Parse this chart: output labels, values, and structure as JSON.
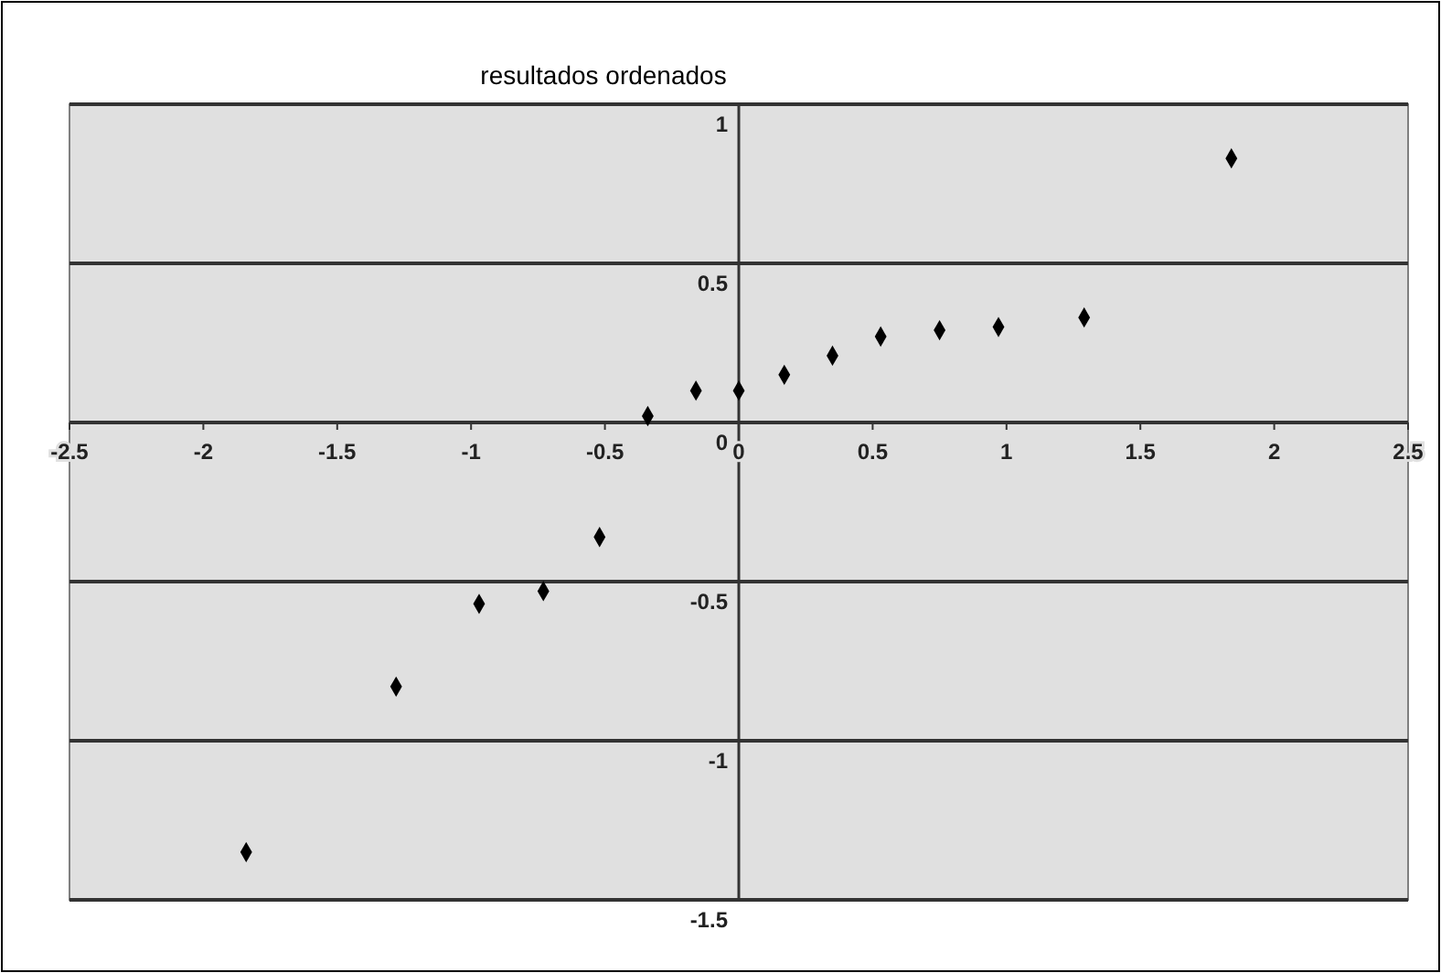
{
  "chart_data": {
    "type": "scatter",
    "title": "resultados ordenados",
    "x": [
      -1.84,
      -1.28,
      -0.97,
      -0.73,
      -0.52,
      -0.34,
      -0.16,
      0.0,
      0.17,
      0.35,
      0.53,
      0.75,
      0.97,
      1.29,
      1.84
    ],
    "values": [
      -1.35,
      -0.83,
      -0.57,
      -0.53,
      -0.36,
      0.02,
      0.1,
      0.1,
      0.15,
      0.21,
      0.27,
      0.29,
      0.3,
      0.33,
      0.83
    ],
    "color": "#000000",
    "marker": "diamond",
    "xlim": [
      -2.5,
      2.5
    ],
    "xticks": [
      -2.5,
      -2,
      -1.5,
      -1,
      -0.5,
      0,
      0.5,
      1,
      1.5,
      2,
      2.5
    ],
    "ylim": [
      -1.5,
      1
    ],
    "yticks": [
      -1.5,
      -1,
      -0.5,
      0,
      0.5,
      1
    ],
    "grid": "y"
  }
}
